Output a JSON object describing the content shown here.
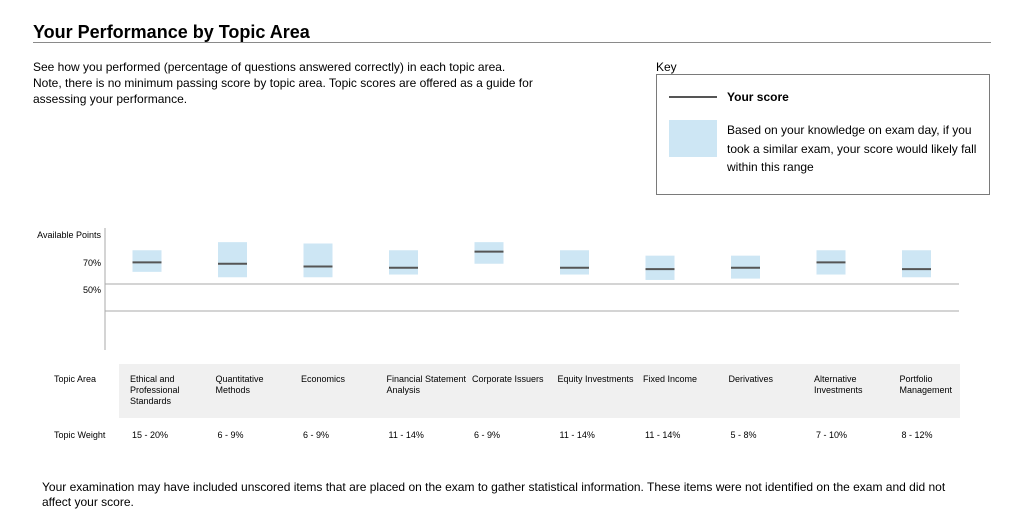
{
  "page": {
    "title": "Your Performance by Topic Area",
    "intro": "See how you performed (percentage of questions answered correctly) in each topic area. Note, there is no minimum passing score by topic area. Topic scores are offered as a guide for assessing your performance.",
    "footnote": "Your examination may have included unscored items that are placed on the exam to gather statistical information. These items were not identified on the exam and did not affect your score."
  },
  "key": {
    "label": "Key",
    "score_label": "Your score",
    "range_label": "Based on your knowledge on exam day, if you took a similar exam, your score would likely fall within this range"
  },
  "colors": {
    "range_fill": "#cde6f4",
    "score_line": "#555555",
    "gridline": "#aaaaaa",
    "panel": "#f0f0f0"
  },
  "chart_data": {
    "type": "range",
    "y_tick_labels": [
      "Available Points",
      "70%",
      "50%"
    ],
    "ylim": [
      0,
      100
    ],
    "gridlines": [
      70,
      50
    ],
    "grid": "horizontal at 70% and 50%",
    "row_labels": {
      "topic_area": "Topic Area",
      "topic_weight": "Topic Weight"
    },
    "categories": [
      "Ethical and Professional Standards",
      "Quantitative Methods",
      "Economics",
      "Financial Statement Analysis",
      "Corporate Issuers",
      "Equity Investments",
      "Fixed Income",
      "Derivatives",
      "Alternative Investments",
      "Portfolio Management"
    ],
    "weights": [
      "15 - 20%",
      "6 - 9%",
      "6 - 9%",
      "11 - 14%",
      "6 - 9%",
      "11 - 14%",
      "11 - 14%",
      "5 - 8%",
      "7 - 10%",
      "8 - 12%"
    ],
    "scores": [
      86,
      85,
      83,
      82,
      94,
      82,
      81,
      82,
      86,
      81
    ],
    "ranges": [
      [
        79,
        95
      ],
      [
        75,
        101
      ],
      [
        75,
        100
      ],
      [
        77,
        95
      ],
      [
        85,
        101
      ],
      [
        77,
        95
      ],
      [
        73,
        91
      ],
      [
        74,
        91
      ],
      [
        77,
        95
      ],
      [
        75,
        95
      ]
    ]
  }
}
